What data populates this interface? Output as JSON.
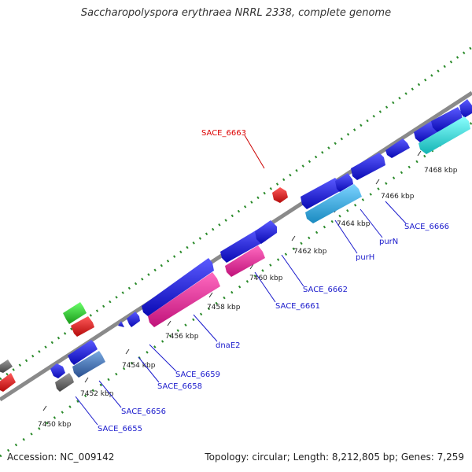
{
  "title": "Saccharopolyspora erythraea NRRL 2338, complete genome",
  "footer": {
    "accession": "Accession: NC_009142",
    "summary": "Topology: circular; Length: 8,212,805 bp; Genes: 7,259"
  },
  "ticks": [
    "7450 kbp",
    "7452 kbp",
    "7454 kbp",
    "7456 kbp",
    "7458 kbp",
    "7460 kbp",
    "7462 kbp",
    "7464 kbp",
    "7466 kbp",
    "7468 kbp"
  ],
  "gene_labels": [
    "SACE_6663",
    "SACE_6666",
    "purN",
    "purH",
    "SACE_6662",
    "SACE_6661",
    "dnaE2",
    "SACE_6659",
    "SACE_6658",
    "SACE_6656",
    "SACE_6655"
  ],
  "colors": {
    "blue": "#1414e6",
    "red": "#e61414",
    "green": "#2ecc2e",
    "pink": "#e61e96",
    "cyan": "#1ee6e6",
    "lightblue": "#3cb4e6",
    "steel": "#4678b4",
    "gray": "#666666",
    "dots": "#2a8a2a",
    "backbone": "#888888"
  }
}
